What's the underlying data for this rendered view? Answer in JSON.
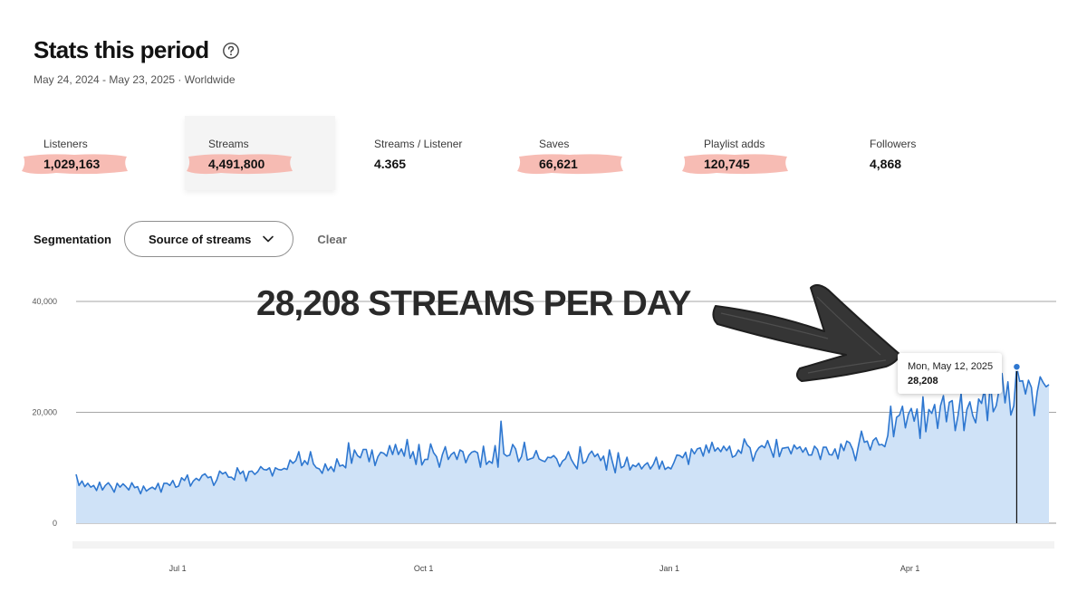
{
  "header": {
    "title": "Stats this period",
    "subtitle": "May 24, 2024 - May 23, 2025 · Worldwide",
    "help_icon": "question-circle-icon"
  },
  "metrics": [
    {
      "label": "Listeners",
      "value": "1,029,163",
      "highlighted": true
    },
    {
      "label": "Streams",
      "value": "4,491,800",
      "highlighted": true,
      "selected": true
    },
    {
      "label": "Streams / Listener",
      "value": "4.365",
      "highlighted": false
    },
    {
      "label": "Saves",
      "value": "66,621",
      "highlighted": true
    },
    {
      "label": "Playlist adds",
      "value": "120,745",
      "highlighted": true
    },
    {
      "label": "Followers",
      "value": "4,868",
      "highlighted": false
    }
  ],
  "segmentation": {
    "label": "Segmentation",
    "selected": "Source of streams",
    "clear_label": "Clear",
    "chevron_icon": "chevron-down-icon"
  },
  "annotation": {
    "text": "28,208 STREAMS PER DAY",
    "arrow_icon": "hand-drawn-arrow-icon"
  },
  "tooltip": {
    "date": "Mon, May 12, 2025",
    "value": "28,208"
  },
  "colors": {
    "line": "#2e77d0",
    "area": "#cfe2f7",
    "highlight": "#f6b5ac",
    "text": "#121212"
  },
  "chart_data": {
    "type": "area",
    "title": "",
    "xlabel": "",
    "ylabel": "",
    "x_start": "May 24, 2024",
    "x_end": "May 23, 2025",
    "ylim": [
      0,
      40000
    ],
    "yticks": [
      0,
      20000,
      40000
    ],
    "ytick_labels": [
      "0",
      "20,000",
      "40,000"
    ],
    "xticks": [
      {
        "label": "Jul 1",
        "date": "2024-07-01"
      },
      {
        "label": "Oct 1",
        "date": "2024-10-01"
      },
      {
        "label": "Jan 1",
        "date": "2025-01-01"
      },
      {
        "label": "Apr 1",
        "date": "2025-04-01"
      }
    ],
    "highlight_point": {
      "date": "Mon, May 12, 2025",
      "value": 28208
    },
    "series": [
      {
        "values": [
          8800,
          6800,
          7600,
          6600,
          7200,
          6500,
          6800,
          5900,
          7400,
          6000,
          6800,
          7300,
          6600,
          5600,
          7200,
          6500,
          7100,
          6600,
          6000,
          7300,
          6400,
          6600,
          5300,
          6700,
          5800,
          6200,
          6500,
          6100,
          7200,
          5600,
          7200,
          7200,
          6800,
          7700,
          6500,
          6700,
          8200,
          7700,
          8700,
          6700,
          7600,
          8100,
          7700,
          8600,
          8900,
          8200,
          8400,
          6800,
          7800,
          9400,
          8900,
          9200,
          8300,
          8300,
          7800,
          10000,
          8900,
          9400,
          7600,
          9300,
          9400,
          8800,
          9300,
          10200,
          9700,
          9600,
          10000,
          8500,
          10000,
          9700,
          9600,
          9900,
          9700,
          11400,
          10800,
          11300,
          12900,
          10400,
          11300,
          10600,
          12900,
          10700,
          10000,
          9800,
          9000,
          10700,
          9500,
          10200,
          9300,
          11600,
          10300,
          10500,
          10000,
          14500,
          10800,
          13200,
          12200,
          11800,
          13300,
          13300,
          11100,
          13200,
          10400,
          12000,
          12800,
          12600,
          12100,
          14000,
          12400,
          14200,
          12400,
          13400,
          12100,
          15100,
          11700,
          12900,
          10600,
          14200,
          10500,
          11500,
          11500,
          14300,
          12700,
          12000,
          10100,
          12400,
          13800,
          11500,
          12400,
          12800,
          11500,
          13200,
          12900,
          10900,
          12200,
          12800,
          13000,
          12700,
          10100,
          13900,
          10600,
          11200,
          10800,
          14000,
          10100,
          18400,
          12500,
          12100,
          12300,
          14200,
          13400,
          11100,
          12000,
          14600,
          11400,
          11600,
          11800,
          13100,
          11600,
          11300,
          11100,
          11900,
          11800,
          12200,
          11600,
          10200,
          11200,
          11600,
          12900,
          11500,
          10600,
          9800,
          13800,
          10800,
          11100,
          12400,
          13000,
          12000,
          12500,
          11300,
          12100,
          9600,
          13200,
          11100,
          9100,
          12700,
          10000,
          10300,
          11900,
          9600,
          10500,
          10200,
          10800,
          9800,
          10500,
          10900,
          9800,
          10600,
          11900,
          9800,
          11200,
          9700,
          10100,
          9800,
          10900,
          12300,
          12200,
          11800,
          12800,
          10600,
          13400,
          12500,
          13400,
          13600,
          12100,
          14100,
          12700,
          14600,
          13000,
          13600,
          12900,
          13900,
          13100,
          13900,
          11900,
          12200,
          13200,
          12600,
          15200,
          14100,
          13600,
          11200,
          12800,
          13600,
          14000,
          13600,
          14900,
          13400,
          11900,
          15100,
          12000,
          13500,
          13600,
          13700,
          12500,
          14100,
          13400,
          13800,
          12800,
          13600,
          12300,
          12300,
          13900,
          13300,
          11500,
          13700,
          13700,
          12400,
          12300,
          13400,
          11600,
          14300,
          13100,
          14800,
          14500,
          13300,
          11300,
          14000,
          16600,
          14600,
          14800,
          13200,
          14900,
          15400,
          14100,
          14200,
          13800,
          15800,
          21100,
          15600,
          19100,
          19500,
          21100,
          17200,
          19600,
          20700,
          18400,
          20600,
          15300,
          22800,
          16500,
          20500,
          19800,
          21400,
          17100,
          21200,
          23000,
          18300,
          21800,
          22100,
          16700,
          19500,
          23400,
          16700,
          20500,
          21900,
          19400,
          18100,
          22400,
          21600,
          24200,
          18500,
          25300,
          20100,
          21200,
          24100,
          27000,
          21700,
          25500,
          19500,
          21200,
          28208,
          25600,
          25700,
          23300,
          25800,
          24500,
          19400,
          23700,
          26400,
          25400,
          24600,
          25000
        ]
      }
    ]
  }
}
